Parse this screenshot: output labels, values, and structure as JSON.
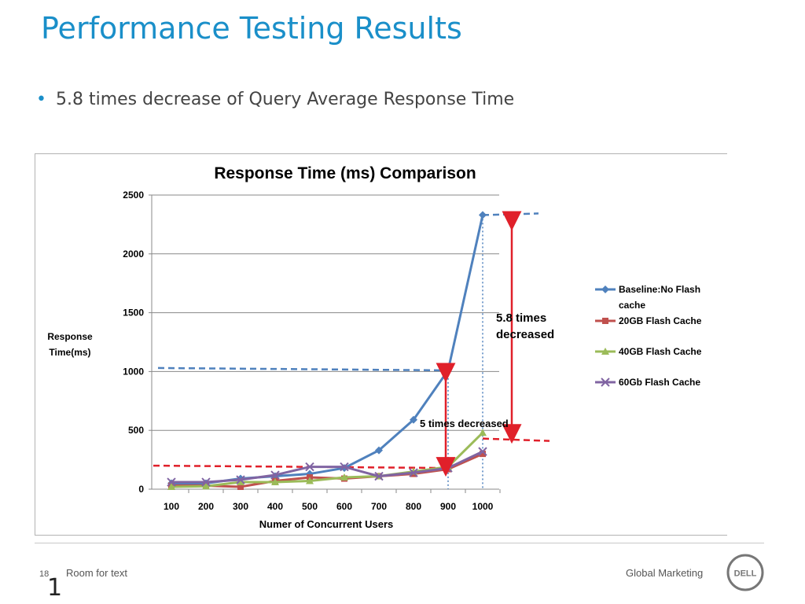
{
  "slide": {
    "title": "Performance Testing Results",
    "bullet": "5.8 times decrease of Query Average Response Time"
  },
  "footer": {
    "slide_number": "18",
    "left_text": "Room for text",
    "big_digit": "1",
    "right_text": "Global Marketing",
    "logo_text": "DELL"
  },
  "colors": {
    "title_blue": "#1a8fc9",
    "baseline": "#4f81bd",
    "flash20": "#c0504d",
    "flash40": "#9bbb59",
    "flash60": "#8064a2",
    "annotation_red": "#e0202a"
  },
  "chart_data": {
    "type": "line",
    "title": "Response Time (ms) Comparison",
    "xlabel": "Numer of Concurrent Users",
    "ylabel": "Response Time(ms)",
    "x": [
      100,
      200,
      300,
      400,
      500,
      600,
      700,
      800,
      900,
      1000
    ],
    "ylim": [
      0,
      2500
    ],
    "yticks": [
      0,
      500,
      1000,
      1500,
      2000,
      2500
    ],
    "grid": true,
    "legend_position": "right",
    "series": [
      {
        "name": "Baseline:No Flash cache",
        "marker": "diamond",
        "values": [
          50,
          50,
          90,
          110,
          130,
          180,
          330,
          590,
          1010,
          2330
        ]
      },
      {
        "name": "20GB Flash Cache",
        "marker": "square",
        "values": [
          30,
          30,
          20,
          70,
          100,
          90,
          110,
          130,
          170,
          300
        ]
      },
      {
        "name": "40GB Flash Cache",
        "marker": "triangle",
        "values": [
          20,
          25,
          60,
          60,
          70,
          100,
          110,
          150,
          190,
          480
        ]
      },
      {
        "name": "60Gb Flash Cache",
        "marker": "x",
        "values": [
          60,
          60,
          80,
          120,
          190,
          190,
          110,
          140,
          180,
          320
        ]
      }
    ],
    "annotations": [
      {
        "text": "5.8 times decreased"
      },
      {
        "text": "5 times decreased"
      }
    ]
  }
}
